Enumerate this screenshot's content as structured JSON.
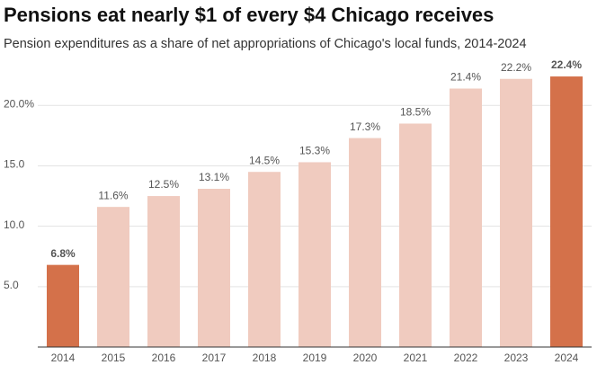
{
  "chart_data": {
    "type": "bar",
    "title": "Pensions eat nearly $1 of every $4 Chicago receives",
    "subtitle": "Pension expenditures as a share of net appropriations of Chicago's local funds, 2014-2024",
    "categories": [
      "2014",
      "2015",
      "2016",
      "2017",
      "2018",
      "2019",
      "2020",
      "2021",
      "2022",
      "2023",
      "2024"
    ],
    "values": [
      6.8,
      11.6,
      12.5,
      13.1,
      14.5,
      15.3,
      17.3,
      18.5,
      21.4,
      22.2,
      22.4
    ],
    "value_labels": [
      "6.8%",
      "11.6%",
      "12.5%",
      "13.1%",
      "14.5%",
      "15.3%",
      "17.3%",
      "18.5%",
      "21.4%",
      "22.2%",
      "22.4%"
    ],
    "colors": [
      "#d4714a",
      "#f0cbbf",
      "#f0cbbf",
      "#f0cbbf",
      "#f0cbbf",
      "#f0cbbf",
      "#f0cbbf",
      "#f0cbbf",
      "#f0cbbf",
      "#f0cbbf",
      "#d4714a"
    ],
    "highlight_color": "#d4714a",
    "ylim": [
      0,
      23
    ],
    "yticks": [
      {
        "value": 5,
        "label": "5.0"
      },
      {
        "value": 10,
        "label": "10.0"
      },
      {
        "value": 15,
        "label": "15.0"
      },
      {
        "value": 20,
        "label": "20.0%"
      }
    ],
    "grid": true
  }
}
